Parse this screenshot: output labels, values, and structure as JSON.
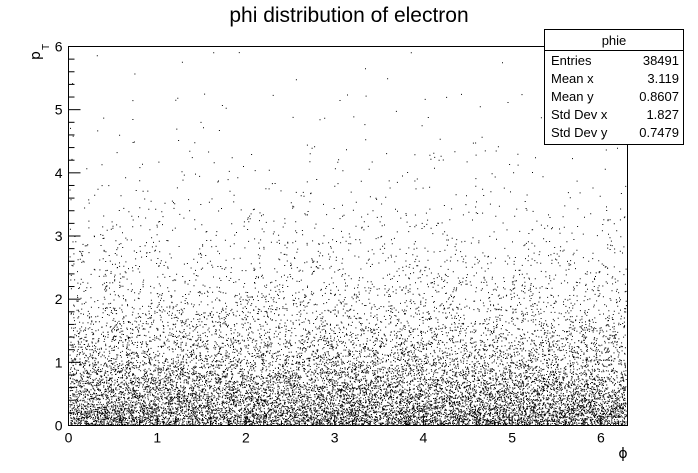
{
  "chart_data": {
    "type": "scatter",
    "title": "phi distribution of electron",
    "xlabel": "ϕ",
    "ylabel": {
      "main": "p",
      "sub": "T"
    },
    "xlim": [
      0,
      6.3
    ],
    "ylim": [
      0,
      6
    ],
    "x_ticks": [
      "0",
      "1",
      "2",
      "3",
      "4",
      "5",
      "6"
    ],
    "y_ticks": [
      "0",
      "1",
      "2",
      "3",
      "4",
      "5",
      "6"
    ],
    "grid": false,
    "distribution": {
      "entries": 38491,
      "x_range": [
        0,
        6.283
      ],
      "y_mean": 0.8607,
      "y_std": 0.7479,
      "note_x": "approximately uniform in phi",
      "note_y": "pT falls off roughly exponentially from 0"
    }
  },
  "stats_box": {
    "title": "phie",
    "rows": [
      {
        "label": "Entries",
        "value": "38491"
      },
      {
        "label": "Mean x",
        "value": "3.119"
      },
      {
        "label": "Mean y",
        "value": "0.8607"
      },
      {
        "label": "Std Dev x",
        "value": "1.827"
      },
      {
        "label": "Std Dev y",
        "value": "0.7479"
      }
    ]
  }
}
